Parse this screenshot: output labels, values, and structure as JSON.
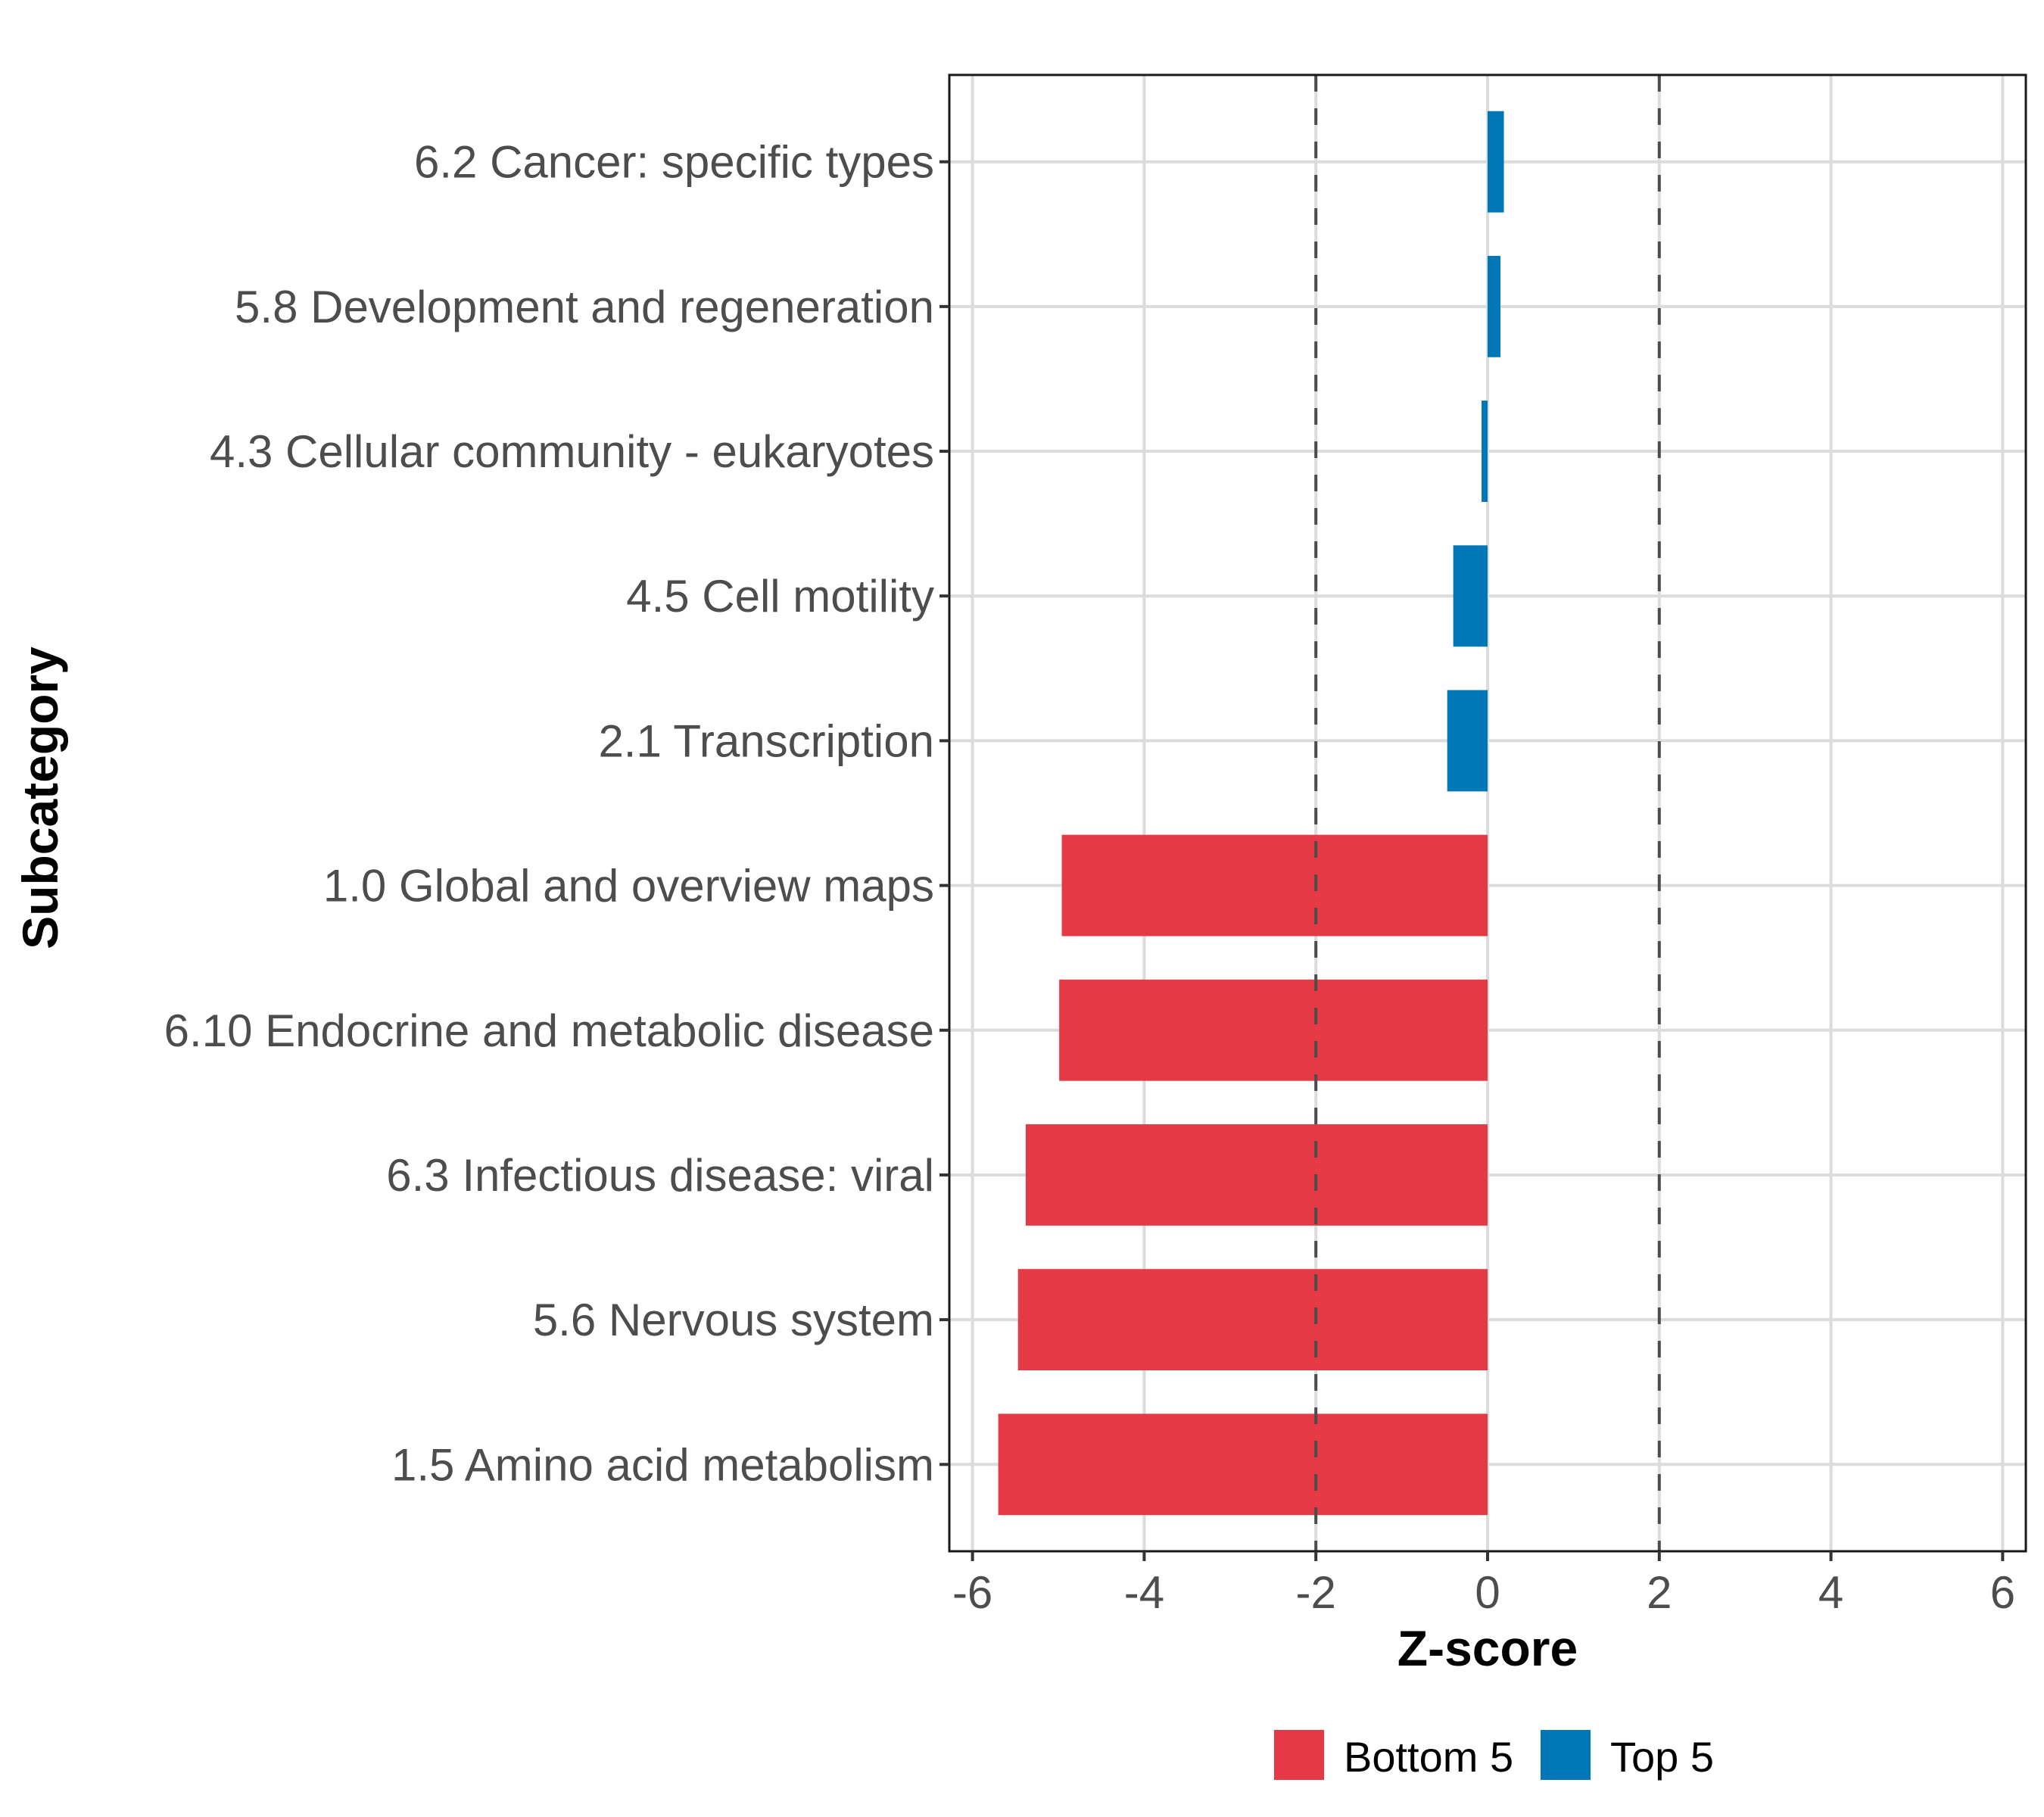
{
  "chart_data": {
    "type": "bar",
    "orientation": "horizontal",
    "title": "",
    "xlabel": "Z-score",
    "ylabel": "Subcategory",
    "xlim": [
      -6.27,
      6.27
    ],
    "xticks": [
      -6,
      -4,
      -2,
      0,
      2,
      4,
      6
    ],
    "xtick_labels": [
      "-6",
      "-4",
      "-2",
      "0",
      "2",
      "4",
      "6"
    ],
    "grid": true,
    "reference_lines": [
      {
        "x": -2,
        "style": "dashed"
      },
      {
        "x": 2,
        "style": "dashed"
      }
    ],
    "categories": [
      "6.2 Cancer: specific types",
      "5.8 Development and regeneration",
      "4.3 Cellular community - eukaryotes",
      "4.5 Cell motility",
      "2.1 Transcription",
      "1.0 Global and overview maps",
      "6.10 Endocrine and metabolic disease",
      "6.3 Infectious disease: viral",
      "5.6 Nervous system",
      "1.5 Amino acid metabolism"
    ],
    "values": [
      0.19,
      0.15,
      -0.07,
      -0.4,
      -0.47,
      -4.96,
      -4.99,
      -5.38,
      -5.47,
      -5.7
    ],
    "groups": [
      "Top 5",
      "Top 5",
      "Top 5",
      "Top 5",
      "Top 5",
      "Bottom 5",
      "Bottom 5",
      "Bottom 5",
      "Bottom 5",
      "Bottom 5"
    ],
    "legend": {
      "placement": "bottom",
      "entries": [
        {
          "label": "Bottom 5",
          "color": "#E63946"
        },
        {
          "label": "Top 5",
          "color": "#0077B6"
        }
      ]
    },
    "colors": {
      "Bottom 5": "#E63946",
      "Top 5": "#0077B6"
    }
  }
}
